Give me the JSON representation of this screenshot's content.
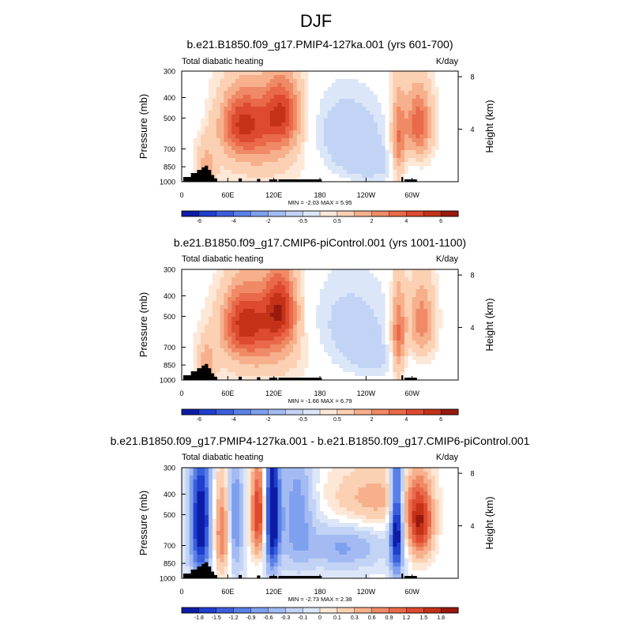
{
  "figure_title": "DJF",
  "colors": {
    "warm": [
      "#fde7d6",
      "#fbd0b3",
      "#f7b08c",
      "#f08a66",
      "#e9694a",
      "#dd4a2f",
      "#c33217",
      "#98190e"
    ],
    "cool": [
      "#dbe6f8",
      "#c3d3f5",
      "#a3bbf2",
      "#7fa0ee",
      "#5980e6",
      "#3a5fdc",
      "#1f3fcd",
      "#0d1ca6"
    ],
    "terrain": "#000000"
  },
  "chart_data": [
    {
      "type": "heatmap",
      "title": "b.e21.B1850.f09_g17.PMIP4-127ka.001 (yrs 601-700)",
      "left_label": "Total diabatic heating",
      "units": "K/day",
      "ylabel": "Pressure (mb)",
      "right_ylabel": "Height (km)",
      "x_ticks": [
        "0",
        "60E",
        "120E",
        "180",
        "120W",
        "60W"
      ],
      "x_tick_lon": [
        0,
        60,
        120,
        180,
        240,
        300
      ],
      "xlim": [
        0,
        360
      ],
      "y_ticks": [
        "300",
        "400",
        "500",
        "700",
        "850",
        "1000"
      ],
      "y_tick_p": [
        300,
        400,
        500,
        700,
        850,
        1000
      ],
      "ylim": [
        1000,
        300
      ],
      "y_scale": "log",
      "right_ticks": [
        "8",
        "4"
      ],
      "right_tick_km": [
        8,
        4
      ],
      "stats": "MIN =  -2.03  MAX =  5.95",
      "colorbar": [
        "-6",
        "-4",
        "-2",
        "-0.5",
        "0.5",
        "2",
        "4",
        "6"
      ],
      "colorbar_levels": [
        -7,
        -6,
        -5,
        -4,
        -3,
        -2,
        -1,
        -0.5,
        0,
        0.5,
        1,
        2,
        3,
        4,
        5,
        6,
        7
      ],
      "min": -2.03,
      "max": 5.95
    },
    {
      "type": "heatmap",
      "title": "b.e21.B1850.f09_g17.CMIP6-piControl.001 (yrs 1001-1100)",
      "left_label": "Total diabatic heating",
      "units": "K/day",
      "ylabel": "Pressure (mb)",
      "right_ylabel": "Height (km)",
      "x_ticks": [
        "0",
        "60E",
        "120E",
        "180",
        "120W",
        "60W"
      ],
      "x_tick_lon": [
        0,
        60,
        120,
        180,
        240,
        300
      ],
      "xlim": [
        0,
        360
      ],
      "y_ticks": [
        "300",
        "400",
        "500",
        "700",
        "850",
        "1000"
      ],
      "y_tick_p": [
        300,
        400,
        500,
        700,
        850,
        1000
      ],
      "ylim": [
        1000,
        300
      ],
      "y_scale": "log",
      "right_ticks": [
        "8",
        "4"
      ],
      "right_tick_km": [
        8,
        4
      ],
      "stats": "MIN =  -1.66  MAX =  6.79",
      "colorbar": [
        "-6",
        "-4",
        "-2",
        "-0.5",
        "0.5",
        "2",
        "4",
        "6"
      ],
      "colorbar_levels": [
        -7,
        -6,
        -5,
        -4,
        -3,
        -2,
        -1,
        -0.5,
        0,
        0.5,
        1,
        2,
        3,
        4,
        5,
        6,
        7
      ],
      "min": -1.66,
      "max": 6.79
    },
    {
      "type": "heatmap",
      "title": "b.e21.B1850.f09_g17.PMIP4-127ka.001 - b.e21.B1850.f09_g17.CMIP6-piControl.001",
      "left_label": "Total diabatic heating",
      "units": "K/day",
      "ylabel": "Pressure (mb)",
      "right_ylabel": "Height (km)",
      "x_ticks": [
        "0",
        "60E",
        "120E",
        "180",
        "120W",
        "60W"
      ],
      "x_tick_lon": [
        0,
        60,
        120,
        180,
        240,
        300
      ],
      "xlim": [
        0,
        360
      ],
      "y_ticks": [
        "300",
        "400",
        "500",
        "700",
        "850",
        "1000"
      ],
      "y_tick_p": [
        300,
        400,
        500,
        700,
        850,
        1000
      ],
      "ylim": [
        1000,
        300
      ],
      "y_scale": "log",
      "right_ticks": [
        "8",
        "4"
      ],
      "right_tick_km": [
        8,
        4
      ],
      "stats": "MIN =  -2.73  MAX =  2.38",
      "colorbar": [
        "-1.8",
        "-1.5",
        "-1.2",
        "-0.9",
        "-0.6",
        "-0.3",
        "-0.1",
        "0",
        "0.1",
        "0.3",
        "0.6",
        "0.9",
        "1.2",
        "1.5",
        "1.8"
      ],
      "colorbar_levels": [
        -2.1,
        -1.8,
        -1.5,
        -1.2,
        -0.9,
        -0.6,
        -0.3,
        -0.1,
        0,
        0.1,
        0.3,
        0.6,
        0.9,
        1.2,
        1.5,
        1.8,
        2.1
      ],
      "min": -2.73,
      "max": 2.38
    }
  ]
}
